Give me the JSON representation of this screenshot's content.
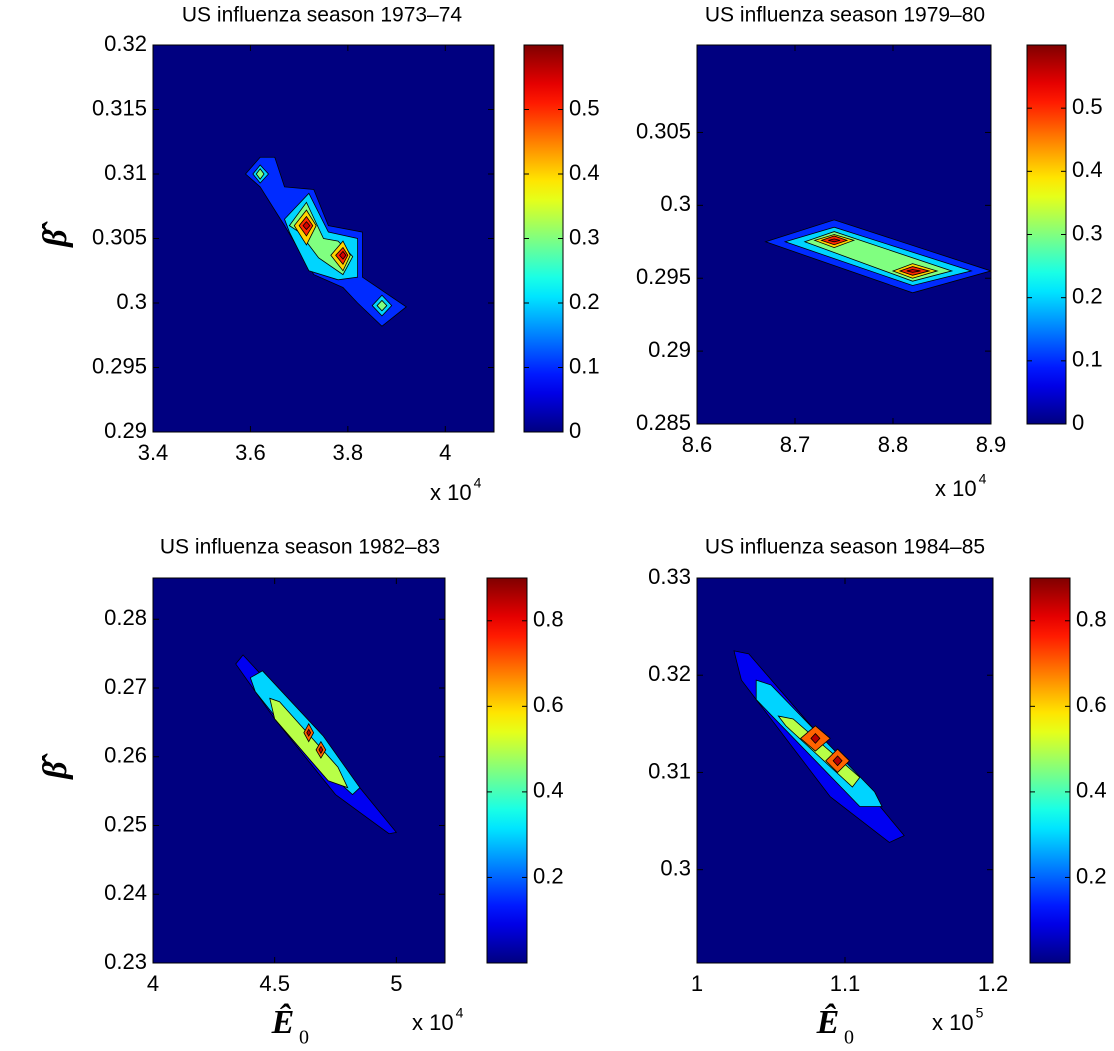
{
  "chart_data": [
    {
      "type": "contour",
      "title": "US influenza season 1973–74",
      "xlim": [
        3.4,
        4.1
      ],
      "ylim": [
        0.29,
        0.32
      ],
      "xticks": [
        3.4,
        3.6,
        3.8,
        4
      ],
      "yticks": [
        0.29,
        0.295,
        0.3,
        0.305,
        0.31,
        0.315,
        0.32
      ],
      "x_multiplier": "x 10",
      "x_exponent": "4",
      "ylabel": "β̂",
      "colormap": "jet",
      "clim": [
        0,
        0.6
      ],
      "colorbar_ticks": [
        0,
        0.1,
        0.2,
        0.3,
        0.4,
        0.5
      ],
      "contours": [
        {
          "level": 0.1,
          "polygons": [
            {
              "x": [
                3.59,
                3.62,
                3.65,
                3.67,
                3.73,
                3.76,
                3.83,
                3.83,
                3.92,
                3.87,
                3.82,
                3.79,
                3.73,
                3.67,
                3.62
              ],
              "y": [
                0.31,
                0.3113,
                0.3113,
                0.309,
                0.3088,
                0.306,
                0.3055,
                0.302,
                0.2997,
                0.2982,
                0.3,
                0.3012,
                0.3022,
                0.306,
                0.309
              ]
            }
          ]
        },
        {
          "level": 0.2,
          "polygons": [
            {
              "x": [
                3.605,
                3.62,
                3.637,
                3.62
              ],
              "y": [
                0.31,
                0.3107,
                0.31,
                0.3093
              ]
            },
            {
              "x": [
                3.67,
                3.72,
                3.76,
                3.82,
                3.82,
                3.78,
                3.72,
                3.68
              ],
              "y": [
                0.3065,
                0.3085,
                0.3055,
                0.305,
                0.302,
                0.3018,
                0.3025,
                0.3055
              ]
            },
            {
              "x": [
                3.85,
                3.87,
                3.89,
                3.87
              ],
              "y": [
                0.2998,
                0.3006,
                0.2998,
                0.299
              ]
            }
          ]
        },
        {
          "level": 0.3,
          "polygons": [
            {
              "x": [
                3.612,
                3.62,
                3.628,
                3.62
              ],
              "y": [
                0.31,
                0.3104,
                0.31,
                0.3096
              ]
            },
            {
              "x": [
                3.68,
                3.715,
                3.75,
                3.78,
                3.81,
                3.79,
                3.74,
                3.7
              ],
              "y": [
                0.306,
                0.3078,
                0.305,
                0.3048,
                0.3036,
                0.3022,
                0.3035,
                0.3055
              ]
            },
            {
              "x": [
                3.86,
                3.87,
                3.88,
                3.87
              ],
              "y": [
                0.2998,
                0.3002,
                0.2998,
                0.2994
              ]
            }
          ]
        },
        {
          "level": 0.4,
          "polygons": [
            {
              "x": [
                3.69,
                3.715,
                3.735,
                3.715
              ],
              "y": [
                0.306,
                0.3072,
                0.306,
                0.3045
              ]
            },
            {
              "x": [
                3.765,
                3.79,
                3.805,
                3.79
              ],
              "y": [
                0.3037,
                0.3048,
                0.3037,
                0.3025
              ]
            }
          ]
        },
        {
          "level": 0.5,
          "polygons": [
            {
              "x": [
                3.7,
                3.715,
                3.728,
                3.715
              ],
              "y": [
                0.306,
                0.3067,
                0.306,
                0.3052
              ]
            },
            {
              "x": [
                3.775,
                3.79,
                3.8,
                3.79
              ],
              "y": [
                0.3037,
                0.3043,
                0.3037,
                0.303
              ]
            }
          ]
        },
        {
          "level": 0.55,
          "polygons": [
            {
              "x": [
                3.708,
                3.715,
                3.722,
                3.715
              ],
              "y": [
                0.306,
                0.3063,
                0.306,
                0.3057
              ]
            },
            {
              "x": [
                3.783,
                3.79,
                3.796,
                3.79
              ],
              "y": [
                0.3037,
                0.304,
                0.3037,
                0.3034
              ]
            }
          ]
        }
      ]
    },
    {
      "type": "contour",
      "title": "US influenza season 1979–80",
      "xlim": [
        8.6,
        8.9
      ],
      "ylim": [
        0.285,
        0.311
      ],
      "xticks": [
        8.6,
        8.7,
        8.8,
        8.9
      ],
      "yticks": [
        0.285,
        0.29,
        0.295,
        0.3,
        0.305
      ],
      "x_multiplier": "x 10",
      "x_exponent": "4",
      "colormap": "jet",
      "clim": [
        0,
        0.6
      ],
      "colorbar_ticks": [
        0,
        0.1,
        0.2,
        0.3,
        0.4,
        0.5
      ],
      "contours": [
        {
          "level": 0.1,
          "polygons": [
            {
              "x": [
                8.67,
                8.74,
                8.9,
                8.82
              ],
              "y": [
                0.2975,
                0.299,
                0.2955,
                0.294
              ]
            }
          ]
        },
        {
          "level": 0.2,
          "polygons": [
            {
              "x": [
                8.69,
                8.74,
                8.88,
                8.82
              ],
              "y": [
                0.2975,
                0.2985,
                0.2955,
                0.2945
              ]
            }
          ]
        },
        {
          "level": 0.3,
          "polygons": [
            {
              "x": [
                8.71,
                8.74,
                8.86,
                8.82
              ],
              "y": [
                0.2975,
                0.2982,
                0.2955,
                0.2948
              ]
            }
          ]
        },
        {
          "level": 0.4,
          "polygons": [
            {
              "x": [
                8.72,
                8.74,
                8.76,
                8.74
              ],
              "y": [
                0.2976,
                0.298,
                0.2976,
                0.2971
              ]
            },
            {
              "x": [
                8.8,
                8.82,
                8.845,
                8.82
              ],
              "y": [
                0.2955,
                0.296,
                0.2955,
                0.295
              ]
            }
          ]
        },
        {
          "level": 0.5,
          "polygons": [
            {
              "x": [
                8.727,
                8.74,
                8.753,
                8.74
              ],
              "y": [
                0.2976,
                0.2979,
                0.2976,
                0.2973
              ]
            },
            {
              "x": [
                8.807,
                8.82,
                8.837,
                8.82
              ],
              "y": [
                0.2955,
                0.2958,
                0.2955,
                0.2952
              ]
            }
          ]
        },
        {
          "level": 0.55,
          "polygons": [
            {
              "x": [
                8.734,
                8.74,
                8.746,
                8.74
              ],
              "y": [
                0.2976,
                0.2977,
                0.2976,
                0.2975
              ]
            },
            {
              "x": [
                8.814,
                8.82,
                8.828,
                8.82
              ],
              "y": [
                0.2955,
                0.2956,
                0.2955,
                0.2954
              ]
            }
          ]
        }
      ]
    },
    {
      "type": "contour",
      "title": "US influenza season 1982–83",
      "xlim": [
        4,
        5.2
      ],
      "ylim": [
        0.23,
        0.286
      ],
      "xticks": [
        4,
        4.5,
        5
      ],
      "yticks": [
        0.23,
        0.24,
        0.25,
        0.26,
        0.27,
        0.28
      ],
      "x_multiplier": "x 10",
      "x_exponent": "4",
      "ylabel": "β̂",
      "xlabel": "Ê",
      "xlabel_subscript": "0",
      "colormap": "jet",
      "clim": [
        0,
        0.9
      ],
      "colorbar_ticks": [
        0.2,
        0.4,
        0.6,
        0.8
      ],
      "contours": [
        {
          "level": 0.1,
          "polygons": [
            {
              "x": [
                4.34,
                4.37,
                4.6,
                4.85,
                5.0,
                4.97,
                4.75,
                4.5
              ],
              "y": [
                0.2735,
                0.2748,
                0.266,
                0.2555,
                0.249,
                0.2488,
                0.2545,
                0.2655
              ]
            }
          ]
        },
        {
          "level": 0.3,
          "polygons": [
            {
              "x": [
                4.4,
                4.45,
                4.7,
                4.85,
                4.82,
                4.6,
                4.42
              ],
              "y": [
                0.2715,
                0.2725,
                0.263,
                0.2555,
                0.2545,
                0.2615,
                0.2695
              ]
            }
          ]
        },
        {
          "level": 0.5,
          "polygons": [
            {
              "x": [
                4.48,
                4.52,
                4.76,
                4.8,
                4.72,
                4.5
              ],
              "y": [
                0.2685,
                0.268,
                0.2585,
                0.2555,
                0.2565,
                0.2655
              ]
            }
          ]
        },
        {
          "level": 0.7,
          "polygons": [
            {
              "x": [
                4.62,
                4.64,
                4.66,
                4.64
              ],
              "y": [
                0.2635,
                0.2648,
                0.2635,
                0.2622
              ]
            },
            {
              "x": [
                4.67,
                4.69,
                4.71,
                4.69
              ],
              "y": [
                0.261,
                0.2622,
                0.261,
                0.2598
              ]
            }
          ]
        },
        {
          "level": 0.85,
          "polygons": [
            {
              "x": [
                4.632,
                4.64,
                4.648,
                4.64
              ],
              "y": [
                0.2635,
                0.264,
                0.2635,
                0.263
              ]
            },
            {
              "x": [
                4.682,
                4.69,
                4.698,
                4.69
              ],
              "y": [
                0.261,
                0.2615,
                0.261,
                0.2605
              ]
            }
          ]
        }
      ]
    },
    {
      "type": "contour",
      "title": "US influenza season 1984–85",
      "xlim": [
        1,
        1.2
      ],
      "ylim": [
        0.2904,
        0.33
      ],
      "xticks": [
        1,
        1.1,
        1.2
      ],
      "yticks": [
        0.3,
        0.31,
        0.32,
        0.33
      ],
      "x_multiplier": "x 10",
      "x_exponent": "5",
      "xlabel": "Ê",
      "xlabel_subscript": "0",
      "colormap": "jet",
      "clim": [
        0,
        0.9
      ],
      "colorbar_ticks": [
        0.2,
        0.4,
        0.6,
        0.8
      ],
      "contours": [
        {
          "level": 0.1,
          "polygons": [
            {
              "x": [
                1.025,
                1.035,
                1.11,
                1.14,
                1.13,
                1.09,
                1.03
              ],
              "y": [
                0.3225,
                0.3222,
                0.309,
                0.3035,
                0.3028,
                0.3075,
                0.3195
              ]
            }
          ]
        },
        {
          "level": 0.3,
          "polygons": [
            {
              "x": [
                1.04,
                1.05,
                1.12,
                1.125,
                1.11,
                1.04
              ],
              "y": [
                0.3195,
                0.319,
                0.308,
                0.3065,
                0.3065,
                0.3175
              ]
            }
          ]
        },
        {
          "level": 0.5,
          "polygons": [
            {
              "x": [
                1.055,
                1.065,
                1.11,
                1.105,
                1.06
              ],
              "y": [
                0.3158,
                0.3155,
                0.3095,
                0.3085,
                0.3148
              ]
            }
          ]
        },
        {
          "level": 0.7,
          "polygons": [
            {
              "x": [
                1.07,
                1.08,
                1.09,
                1.08
              ],
              "y": [
                0.3135,
                0.3148,
                0.3135,
                0.3122
              ]
            },
            {
              "x": [
                1.087,
                1.095,
                1.103,
                1.095
              ],
              "y": [
                0.3112,
                0.3124,
                0.3112,
                0.31
              ]
            }
          ]
        },
        {
          "level": 0.85,
          "polygons": [
            {
              "x": [
                1.077,
                1.08,
                1.083,
                1.08
              ],
              "y": [
                0.3135,
                0.314,
                0.3135,
                0.313
              ]
            },
            {
              "x": [
                1.092,
                1.095,
                1.098,
                1.095
              ],
              "y": [
                0.3112,
                0.3117,
                0.3112,
                0.3107
              ]
            }
          ]
        }
      ]
    }
  ]
}
